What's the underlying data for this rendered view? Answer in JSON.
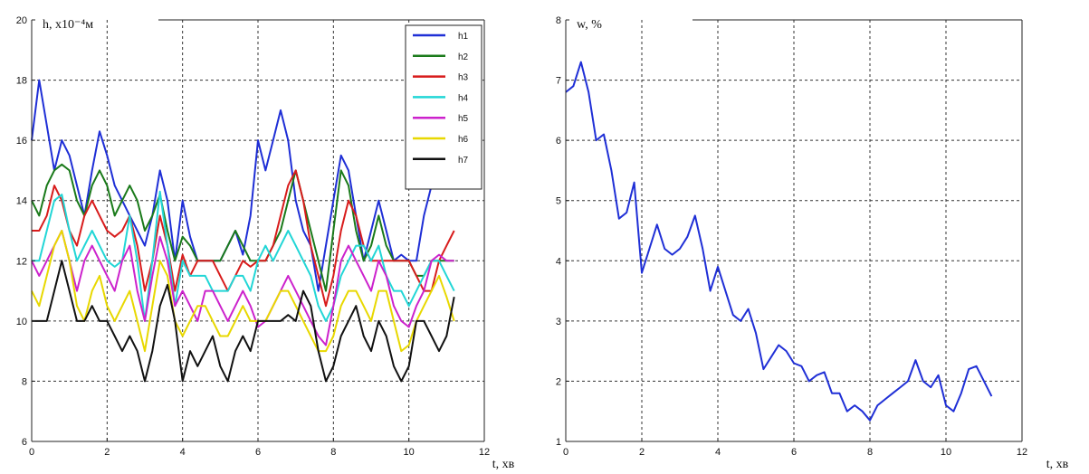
{
  "chart_data": [
    {
      "type": "line",
      "ylabel": "h, x10⁻⁴м",
      "xlabel": "t, хв",
      "xlim": [
        0,
        12
      ],
      "ylim": [
        6,
        20
      ],
      "xticks": [
        "0",
        "2",
        "4",
        "6",
        "8",
        "10",
        "12"
      ],
      "yticks": [
        "6",
        "8",
        "10",
        "12",
        "14",
        "16",
        "18",
        "20"
      ],
      "grid": true,
      "legend_position": "top-right",
      "series": [
        {
          "name": "h1",
          "color": "#1f2fd6",
          "x": [
            0,
            0.2,
            0.4,
            0.6,
            0.8,
            1.0,
            1.2,
            1.4,
            1.6,
            1.8,
            2.0,
            2.2,
            2.4,
            2.6,
            2.8,
            3.0,
            3.2,
            3.4,
            3.6,
            3.8,
            4.0,
            4.2,
            4.4,
            4.6,
            4.8,
            5.0,
            5.2,
            5.4,
            5.6,
            5.8,
            6.0,
            6.2,
            6.4,
            6.6,
            6.8,
            7.0,
            7.2,
            7.4,
            7.6,
            7.8,
            8.0,
            8.2,
            8.4,
            8.6,
            8.8,
            9.0,
            9.2,
            9.4,
            9.6,
            9.8,
            10.0,
            10.2,
            10.4,
            10.6,
            10.8,
            11.0,
            11.2
          ],
          "values": [
            16.0,
            18.0,
            16.5,
            15.0,
            16.0,
            15.5,
            14.5,
            13.5,
            15.0,
            16.3,
            15.5,
            14.5,
            14.0,
            13.5,
            13.0,
            12.5,
            13.5,
            15.0,
            14.0,
            12.0,
            14.0,
            12.8,
            12.0,
            12.0,
            12.0,
            12.0,
            12.5,
            13.0,
            12.2,
            13.5,
            16.0,
            15.0,
            16.0,
            17.0,
            16.0,
            14.0,
            13.0,
            12.5,
            11.0,
            12.5,
            14.0,
            15.5,
            15.0,
            13.5,
            12.0,
            13.0,
            14.0,
            13.0,
            12.0,
            12.2,
            12.0,
            12.0,
            13.5,
            14.5,
            15.0,
            15.5,
            16.0
          ]
        },
        {
          "name": "h2",
          "color": "#1a7a1a",
          "x": [
            0,
            0.2,
            0.4,
            0.6,
            0.8,
            1.0,
            1.2,
            1.4,
            1.6,
            1.8,
            2.0,
            2.2,
            2.4,
            2.6,
            2.8,
            3.0,
            3.2,
            3.4,
            3.6,
            3.8,
            4.0,
            4.2,
            4.4,
            4.6,
            4.8,
            5.0,
            5.2,
            5.4,
            5.6,
            5.8,
            6.0,
            6.2,
            6.4,
            6.6,
            6.8,
            7.0,
            7.2,
            7.4,
            7.6,
            7.8,
            8.0,
            8.2,
            8.4,
            8.6,
            8.8,
            9.0,
            9.2,
            9.4,
            9.6,
            9.8,
            10.0,
            10.2,
            10.4,
            10.6,
            10.8,
            11.0,
            11.2
          ],
          "values": [
            14.0,
            13.5,
            14.5,
            15.0,
            15.2,
            15.0,
            14.0,
            13.5,
            14.5,
            15.0,
            14.5,
            13.5,
            14.0,
            14.5,
            14.0,
            13.0,
            13.5,
            14.2,
            13.0,
            12.0,
            12.8,
            12.5,
            12.0,
            12.0,
            12.0,
            12.0,
            12.5,
            13.0,
            12.5,
            12.0,
            12.0,
            12.0,
            12.5,
            13.0,
            14.0,
            15.0,
            14.0,
            13.0,
            12.0,
            11.0,
            13.0,
            15.0,
            14.5,
            13.0,
            12.0,
            12.5,
            13.5,
            12.5,
            12.0,
            12.0,
            12.0,
            11.5,
            11.5,
            12.0,
            12.0,
            12.0,
            12.0
          ]
        },
        {
          "name": "h3",
          "color": "#d81c1c",
          "x": [
            0,
            0.2,
            0.4,
            0.6,
            0.8,
            1.0,
            1.2,
            1.4,
            1.6,
            1.8,
            2.0,
            2.2,
            2.4,
            2.6,
            2.8,
            3.0,
            3.2,
            3.4,
            3.6,
            3.8,
            4.0,
            4.2,
            4.4,
            4.6,
            4.8,
            5.0,
            5.2,
            5.4,
            5.6,
            5.8,
            6.0,
            6.2,
            6.4,
            6.6,
            6.8,
            7.0,
            7.2,
            7.4,
            7.6,
            7.8,
            8.0,
            8.2,
            8.4,
            8.6,
            8.8,
            9.0,
            9.2,
            9.4,
            9.6,
            9.8,
            10.0,
            10.2,
            10.4,
            10.6,
            10.8,
            11.0,
            11.2
          ],
          "values": [
            13.0,
            13.0,
            13.5,
            14.5,
            14.0,
            13.0,
            12.5,
            13.5,
            14.0,
            13.5,
            13.0,
            12.8,
            13.0,
            13.5,
            12.5,
            11.0,
            12.0,
            13.5,
            12.5,
            11.0,
            12.2,
            11.5,
            12.0,
            12.0,
            12.0,
            11.5,
            11.0,
            11.5,
            12.0,
            11.8,
            12.0,
            12.0,
            12.5,
            13.5,
            14.5,
            15.0,
            14.0,
            12.5,
            11.5,
            10.5,
            11.5,
            13.0,
            14.0,
            13.5,
            12.5,
            12.0,
            12.0,
            12.0,
            12.0,
            12.0,
            12.0,
            11.5,
            11.0,
            11.0,
            12.0,
            12.5,
            13.0
          ]
        },
        {
          "name": "h4",
          "color": "#22d6d6",
          "x": [
            0,
            0.2,
            0.4,
            0.6,
            0.8,
            1.0,
            1.2,
            1.4,
            1.6,
            1.8,
            2.0,
            2.2,
            2.4,
            2.6,
            2.8,
            3.0,
            3.2,
            3.4,
            3.6,
            3.8,
            4.0,
            4.2,
            4.4,
            4.6,
            4.8,
            5.0,
            5.2,
            5.4,
            5.6,
            5.8,
            6.0,
            6.2,
            6.4,
            6.6,
            6.8,
            7.0,
            7.2,
            7.4,
            7.6,
            7.8,
            8.0,
            8.2,
            8.4,
            8.6,
            8.8,
            9.0,
            9.2,
            9.4,
            9.6,
            9.8,
            10.0,
            10.2,
            10.4,
            10.6,
            10.8,
            11.0,
            11.2
          ],
          "values": [
            12.0,
            12.0,
            13.0,
            14.0,
            14.2,
            13.0,
            12.0,
            12.5,
            13.0,
            12.5,
            12.0,
            11.8,
            12.0,
            13.5,
            12.0,
            10.0,
            12.0,
            14.3,
            12.5,
            10.5,
            12.0,
            11.5,
            11.5,
            11.5,
            11.0,
            11.0,
            11.0,
            11.5,
            11.5,
            11.0,
            12.0,
            12.5,
            12.0,
            12.5,
            13.0,
            12.5,
            12.0,
            11.5,
            10.5,
            10.0,
            10.5,
            11.5,
            12.0,
            12.5,
            12.5,
            12.0,
            12.5,
            11.5,
            11.0,
            11.0,
            10.5,
            11.0,
            11.5,
            12.0,
            12.0,
            11.5,
            11.0
          ]
        },
        {
          "name": "h5",
          "color": "#cc22cc",
          "x": [
            0,
            0.2,
            0.4,
            0.6,
            0.8,
            1.0,
            1.2,
            1.4,
            1.6,
            1.8,
            2.0,
            2.2,
            2.4,
            2.6,
            2.8,
            3.0,
            3.2,
            3.4,
            3.6,
            3.8,
            4.0,
            4.2,
            4.4,
            4.6,
            4.8,
            5.0,
            5.2,
            5.4,
            5.6,
            5.8,
            6.0,
            6.2,
            6.4,
            6.6,
            6.8,
            7.0,
            7.2,
            7.4,
            7.6,
            7.8,
            8.0,
            8.2,
            8.4,
            8.6,
            8.8,
            9.0,
            9.2,
            9.4,
            9.6,
            9.8,
            10.0,
            10.2,
            10.4,
            10.6,
            10.8,
            11.0,
            11.2
          ],
          "values": [
            12.0,
            11.5,
            12.0,
            12.5,
            13.0,
            12.0,
            11.0,
            12.0,
            12.5,
            12.0,
            11.5,
            11.0,
            12.0,
            12.5,
            11.0,
            10.0,
            11.5,
            12.8,
            12.0,
            10.5,
            11.0,
            10.5,
            10.0,
            11.0,
            11.0,
            10.5,
            10.0,
            10.5,
            11.0,
            10.5,
            9.8,
            10.0,
            10.5,
            11.0,
            11.5,
            11.0,
            10.5,
            10.0,
            9.5,
            9.2,
            10.5,
            12.0,
            12.5,
            12.0,
            11.5,
            11.0,
            12.0,
            11.5,
            10.5,
            10.0,
            9.8,
            10.5,
            11.0,
            12.0,
            12.2,
            12.0,
            12.0
          ]
        },
        {
          "name": "h6",
          "color": "#e8d800",
          "x": [
            0,
            0.2,
            0.4,
            0.6,
            0.8,
            1.0,
            1.2,
            1.4,
            1.6,
            1.8,
            2.0,
            2.2,
            2.4,
            2.6,
            2.8,
            3.0,
            3.2,
            3.4,
            3.6,
            3.8,
            4.0,
            4.2,
            4.4,
            4.6,
            4.8,
            5.0,
            5.2,
            5.4,
            5.6,
            5.8,
            6.0,
            6.2,
            6.4,
            6.6,
            6.8,
            7.0,
            7.2,
            7.4,
            7.6,
            7.8,
            8.0,
            8.2,
            8.4,
            8.6,
            8.8,
            9.0,
            9.2,
            9.4,
            9.6,
            9.8,
            10.0,
            10.2,
            10.4,
            10.6,
            10.8,
            11.0,
            11.2
          ],
          "values": [
            11.0,
            10.5,
            11.5,
            12.5,
            13.0,
            12.0,
            10.5,
            10.0,
            11.0,
            11.5,
            10.5,
            10.0,
            10.5,
            11.0,
            10.0,
            9.0,
            10.5,
            12.0,
            11.5,
            10.0,
            9.5,
            10.0,
            10.5,
            10.5,
            10.0,
            9.5,
            9.5,
            10.0,
            10.5,
            10.0,
            10.0,
            10.0,
            10.5,
            11.0,
            11.0,
            10.5,
            10.0,
            9.5,
            9.0,
            9.0,
            9.5,
            10.5,
            11.0,
            11.0,
            10.5,
            10.0,
            11.0,
            11.0,
            10.0,
            9.0,
            9.2,
            10.0,
            10.5,
            11.0,
            11.5,
            10.8,
            10.0
          ]
        },
        {
          "name": "h7",
          "color": "#111111",
          "x": [
            0,
            0.2,
            0.4,
            0.6,
            0.8,
            1.0,
            1.2,
            1.4,
            1.6,
            1.8,
            2.0,
            2.2,
            2.4,
            2.6,
            2.8,
            3.0,
            3.2,
            3.4,
            3.6,
            3.8,
            4.0,
            4.2,
            4.4,
            4.6,
            4.8,
            5.0,
            5.2,
            5.4,
            5.6,
            5.8,
            6.0,
            6.2,
            6.4,
            6.6,
            6.8,
            7.0,
            7.2,
            7.4,
            7.6,
            7.8,
            8.0,
            8.2,
            8.4,
            8.6,
            8.8,
            9.0,
            9.2,
            9.4,
            9.6,
            9.8,
            10.0,
            10.2,
            10.4,
            10.6,
            10.8,
            11.0,
            11.2
          ],
          "values": [
            10.0,
            10.0,
            10.0,
            11.0,
            12.0,
            11.0,
            10.0,
            10.0,
            10.5,
            10.0,
            10.0,
            9.5,
            9.0,
            9.5,
            9.0,
            8.0,
            9.0,
            10.5,
            11.2,
            10.0,
            8.0,
            9.0,
            8.5,
            9.0,
            9.5,
            8.5,
            8.0,
            9.0,
            9.5,
            9.0,
            10.0,
            10.0,
            10.0,
            10.0,
            10.2,
            10.0,
            11.0,
            10.5,
            9.0,
            8.0,
            8.5,
            9.5,
            10.0,
            10.5,
            9.5,
            9.0,
            10.0,
            9.5,
            8.5,
            8.0,
            8.5,
            10.0,
            10.0,
            9.5,
            9.0,
            9.5,
            10.8
          ]
        }
      ]
    },
    {
      "type": "line",
      "ylabel": "w, %",
      "xlabel": "t, хв",
      "xlim": [
        0,
        12
      ],
      "ylim": [
        1,
        8
      ],
      "xticks": [
        "0",
        "2",
        "4",
        "6",
        "8",
        "10",
        "12"
      ],
      "yticks": [
        "1",
        "2",
        "3",
        "4",
        "5",
        "6",
        "7",
        "8"
      ],
      "grid": true,
      "series": [
        {
          "color": "#1f2fd6",
          "x": [
            0,
            0.2,
            0.4,
            0.6,
            0.8,
            1.0,
            1.2,
            1.4,
            1.6,
            1.8,
            2.0,
            2.2,
            2.4,
            2.6,
            2.8,
            3.0,
            3.2,
            3.4,
            3.6,
            3.8,
            4.0,
            4.2,
            4.4,
            4.6,
            4.8,
            5.0,
            5.2,
            5.4,
            5.6,
            5.8,
            6.0,
            6.2,
            6.4,
            6.6,
            6.8,
            7.0,
            7.2,
            7.4,
            7.6,
            7.8,
            8.0,
            8.2,
            8.4,
            8.6,
            8.8,
            9.0,
            9.2,
            9.4,
            9.6,
            9.8,
            10.0,
            10.2,
            10.4,
            10.6,
            10.8,
            11.0,
            11.2
          ],
          "values": [
            6.8,
            6.9,
            7.3,
            6.8,
            6.0,
            6.1,
            5.5,
            4.7,
            4.8,
            5.3,
            3.8,
            4.2,
            4.6,
            4.2,
            4.1,
            4.2,
            4.4,
            4.75,
            4.2,
            3.5,
            3.9,
            3.5,
            3.1,
            3.0,
            3.2,
            2.8,
            2.2,
            2.4,
            2.6,
            2.5,
            2.3,
            2.25,
            2.0,
            2.1,
            2.15,
            1.8,
            1.8,
            1.5,
            1.6,
            1.5,
            1.35,
            1.6,
            1.7,
            1.8,
            1.9,
            2.0,
            2.35,
            2.0,
            1.9,
            2.1,
            1.6,
            1.5,
            1.8,
            2.2,
            2.25,
            2.0,
            1.75
          ]
        }
      ]
    }
  ]
}
